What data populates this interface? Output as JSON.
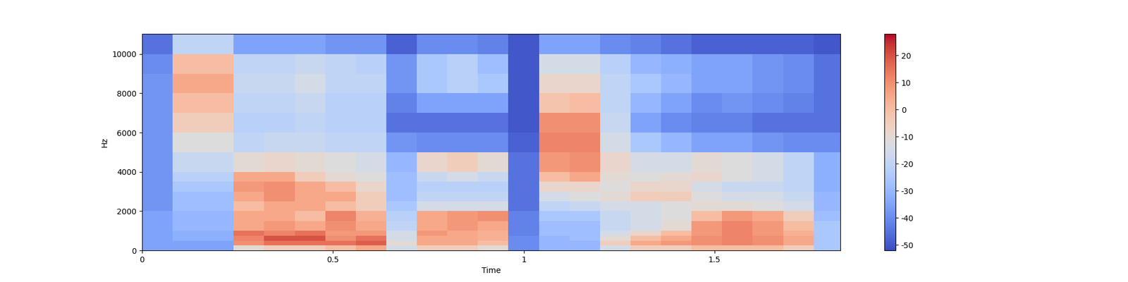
{
  "chart_data": {
    "type": "heatmap",
    "xlabel": "Time",
    "ylabel": "Hz",
    "x_edges": [
      0,
      0.08,
      0.16,
      0.24,
      0.32,
      0.4,
      0.48,
      0.56,
      0.64,
      0.72,
      0.8,
      0.88,
      0.96,
      1.04,
      1.12,
      1.2,
      1.28,
      1.36,
      1.44,
      1.52,
      1.6,
      1.68,
      1.76,
      1.84
    ],
    "y_edges": [
      0,
      250,
      500,
      750,
      1000,
      1500,
      2000,
      2500,
      3000,
      3500,
      4000,
      5000,
      6000,
      7000,
      8000,
      9000,
      10000,
      11025
    ],
    "cells": [
      [
        -35,
        -35,
        -35,
        -10,
        -5,
        -5,
        0,
        5,
        -15,
        -5,
        -5,
        -10,
        -40,
        -30,
        -30,
        -15,
        -5,
        -5,
        0,
        0,
        0,
        -5,
        -25
      ],
      [
        -35,
        -35,
        -35,
        10,
        15,
        15,
        15,
        18,
        -10,
        5,
        5,
        0,
        -40,
        -30,
        -30,
        -5,
        5,
        8,
        10,
        12,
        10,
        5,
        -25
      ],
      [
        -35,
        -32,
        -32,
        12,
        20,
        20,
        10,
        15,
        -15,
        5,
        5,
        3,
        -40,
        -30,
        -28,
        -10,
        0,
        5,
        10,
        12,
        10,
        5,
        -25
      ],
      [
        -35,
        -32,
        -32,
        15,
        12,
        15,
        8,
        8,
        -15,
        8,
        5,
        3,
        -42,
        -28,
        -28,
        -15,
        -8,
        0,
        8,
        12,
        8,
        3,
        -25
      ],
      [
        -35,
        -30,
        -30,
        5,
        8,
        5,
        10,
        5,
        -20,
        5,
        8,
        5,
        -42,
        -28,
        -28,
        -18,
        -15,
        -10,
        8,
        12,
        8,
        0,
        -25
      ],
      [
        -35,
        -30,
        -30,
        5,
        5,
        0,
        12,
        3,
        -22,
        5,
        8,
        10,
        -42,
        -25,
        -25,
        -18,
        -15,
        -12,
        0,
        8,
        5,
        -5,
        -28
      ],
      [
        -38,
        -28,
        -28,
        0,
        5,
        5,
        0,
        -5,
        -25,
        -15,
        -15,
        -15,
        -45,
        -20,
        -18,
        -15,
        -15,
        -12,
        -10,
        -10,
        -12,
        -15,
        -30
      ],
      [
        -38,
        -28,
        -28,
        5,
        10,
        5,
        5,
        -5,
        -28,
        -20,
        -20,
        -20,
        -45,
        -15,
        -12,
        -10,
        -5,
        -5,
        -12,
        -15,
        -15,
        -18,
        -30
      ],
      [
        -38,
        -25,
        -25,
        8,
        10,
        5,
        0,
        -8,
        -28,
        -22,
        -22,
        -22,
        -45,
        -8,
        -8,
        -12,
        -8,
        -8,
        -15,
        -18,
        -18,
        -20,
        -32
      ],
      [
        -38,
        -22,
        -22,
        5,
        5,
        -5,
        -10,
        -12,
        -28,
        -18,
        -15,
        -18,
        -45,
        0,
        5,
        -10,
        -12,
        -10,
        -8,
        -12,
        -15,
        -20,
        -32
      ],
      [
        -38,
        -18,
        -18,
        -10,
        -8,
        -10,
        -12,
        -15,
        -30,
        -8,
        -5,
        -10,
        -45,
        8,
        10,
        -8,
        -15,
        -15,
        -10,
        -12,
        -15,
        -20,
        -32
      ],
      [
        -38,
        -12,
        -12,
        -20,
        -18,
        -18,
        -20,
        -20,
        -38,
        -40,
        -40,
        -40,
        -48,
        12,
        12,
        -15,
        -25,
        -30,
        -35,
        -35,
        -38,
        -40,
        -40
      ],
      [
        -38,
        -5,
        -5,
        -22,
        -22,
        -20,
        -22,
        -22,
        -45,
        -45,
        -45,
        -45,
        -50,
        10,
        10,
        -18,
        -35,
        -40,
        -42,
        -42,
        -45,
        -45,
        -45
      ],
      [
        -38,
        0,
        0,
        -20,
        -20,
        -18,
        -22,
        -22,
        -42,
        -35,
        -35,
        -35,
        -50,
        -2,
        0,
        -20,
        -30,
        -35,
        -40,
        -38,
        -40,
        -42,
        -45
      ],
      [
        -38,
        5,
        5,
        -18,
        -18,
        -15,
        -20,
        -20,
        -38,
        -25,
        -22,
        -25,
        -50,
        -8,
        -8,
        -20,
        -25,
        -30,
        -35,
        -35,
        -38,
        -40,
        -45
      ],
      [
        -40,
        0,
        0,
        -20,
        -20,
        -18,
        -20,
        -22,
        -38,
        -25,
        -22,
        -28,
        -50,
        -15,
        -15,
        -22,
        -30,
        -32,
        -35,
        -35,
        -38,
        -40,
        -45
      ],
      [
        -45,
        -20,
        -20,
        -35,
        -35,
        -35,
        -38,
        -38,
        -48,
        -40,
        -40,
        -42,
        -50,
        -35,
        -35,
        -40,
        -42,
        -45,
        -48,
        -48,
        -48,
        -48,
        -50
      ]
    ],
    "xlim": [
      0,
      1.83
    ],
    "xticks": [
      0,
      0.5,
      1,
      1.5
    ],
    "ylim": [
      0,
      11025
    ],
    "yticks": [
      0,
      2000,
      4000,
      6000,
      8000,
      10000
    ],
    "colorbar_lim": [
      -52,
      28
    ],
    "colorbar_ticks": [
      -50,
      -40,
      -30,
      -20,
      -10,
      0,
      10,
      20
    ]
  }
}
